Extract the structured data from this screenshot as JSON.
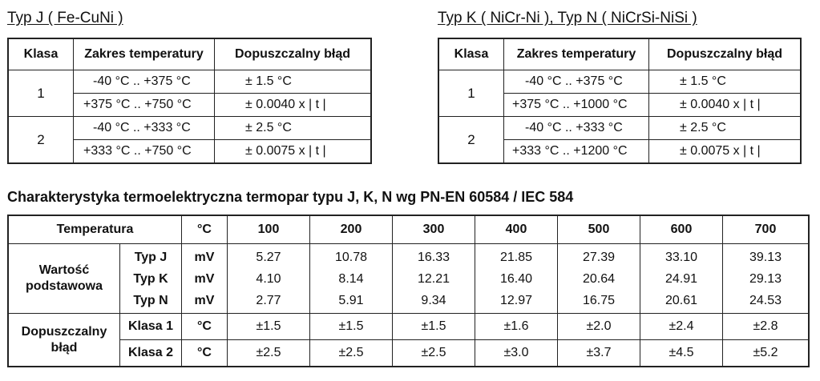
{
  "typJ": {
    "caption": "Typ J ( Fe-CuNi )",
    "headers": [
      "Klasa",
      "Zakres temperatury",
      "Dopuszczalny błąd"
    ],
    "rows": [
      {
        "klasa": "1",
        "range": "-40 °C ..  +375 °C",
        "err": "± 1.5 °C"
      },
      {
        "klasa": "",
        "range": "+375 °C ..  +750 °C",
        "err": "± 0.0040 x | t |"
      },
      {
        "klasa": "2",
        "range": "-40 °C ..  +333 °C",
        "err": "± 2.5 °C"
      },
      {
        "klasa": "",
        "range": "+333 °C ..  +750 °C",
        "err": "± 0.0075 x | t |"
      }
    ]
  },
  "typK": {
    "caption": "Typ K ( NiCr-Ni ), Typ N ( NiCrSi-NiSi )",
    "headers": [
      "Klasa",
      "Zakres temperatury",
      "Dopuszczalny błąd"
    ],
    "rows": [
      {
        "klasa": "1",
        "range": "-40 °C ..  +375 °C",
        "err": "± 1.5 °C"
      },
      {
        "klasa": "",
        "range": "+375 °C .. +1000 °C",
        "err": "± 0.0040 x | t |"
      },
      {
        "klasa": "2",
        "range": "-40 °C ..  +333 °C",
        "err": "± 2.5 °C"
      },
      {
        "klasa": "",
        "range": "+333 °C .. +1200 °C",
        "err": "± 0.0075 x | t |"
      }
    ]
  },
  "char": {
    "title": "Charakterystyka termoelektryczna termopar typu J, K, N wg PN-EN 60584 / IEC 584",
    "temp_label": "Temperatura",
    "unit_c": "°C",
    "temps": [
      "100",
      "200",
      "300",
      "400",
      "500",
      "600",
      "700"
    ],
    "wartosc_label": "Wartość podstawowa",
    "types": [
      "Typ J",
      "Typ K",
      "Typ N"
    ],
    "unit_mv": "mV",
    "values": [
      [
        "5.27",
        "4.10",
        "2.77"
      ],
      [
        "10.78",
        "8.14",
        "5.91"
      ],
      [
        "16.33",
        "12.21",
        "9.34"
      ],
      [
        "21.85",
        "16.40",
        "12.97"
      ],
      [
        "27.39",
        "20.64",
        "16.75"
      ],
      [
        "33.10",
        "24.91",
        "20.61"
      ],
      [
        "39.13",
        "29.13",
        "24.53"
      ]
    ],
    "blad_label": "Dopuszczalny błąd",
    "klasa1_label": "Klasa 1",
    "klasa2_label": "Klasa 2",
    "klasa1": [
      "±1.5",
      "±1.5",
      "±1.5",
      "±1.6",
      "±2.0",
      "±2.4",
      "±2.8"
    ],
    "klasa2": [
      "±2.5",
      "±2.5",
      "±2.5",
      "±3.0",
      "±3.7",
      "±4.5",
      "±5.2"
    ]
  }
}
